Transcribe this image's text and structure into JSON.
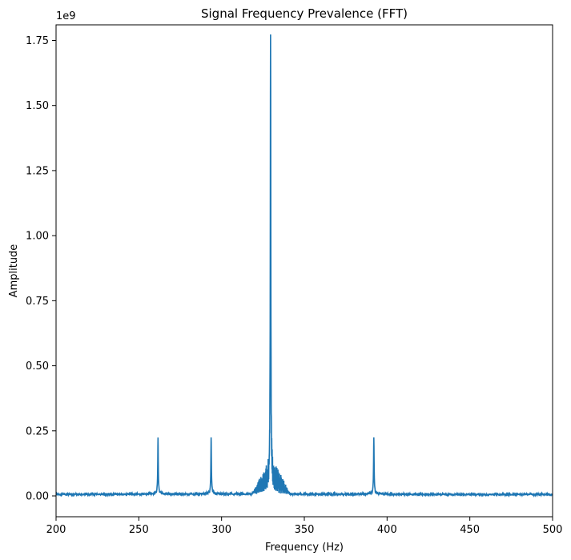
{
  "chart_data": {
    "type": "line",
    "title": "Signal Frequency Prevalence (FFT)",
    "xlabel": "Frequency (Hz)",
    "ylabel": "Amplitude",
    "y_offset_label": "1e9",
    "xlim": [
      200,
      500
    ],
    "ylim": [
      -0.08,
      1.81
    ],
    "y_scale_factor": 1000000000,
    "grid": false,
    "line_color": "#1f77b4",
    "x_ticks": [
      200,
      250,
      300,
      350,
      400,
      450,
      500
    ],
    "x_tick_labels": [
      "200",
      "250",
      "300",
      "350",
      "400",
      "450",
      "500"
    ],
    "y_ticks": [
      0.0,
      0.25,
      0.5,
      0.75,
      1.0,
      1.25,
      1.5,
      1.75
    ],
    "y_tick_labels": [
      "0.00",
      "0.25",
      "0.50",
      "0.75",
      "1.00",
      "1.25",
      "1.50",
      "1.75"
    ],
    "series": [
      {
        "peaks": [
          {
            "x": 261.6,
            "y": 0.22
          },
          {
            "x": 293.7,
            "y": 0.22
          },
          {
            "x": 329.6,
            "y": 1.73
          },
          {
            "x": 392.0,
            "y": 0.22
          }
        ],
        "cluster": {
          "center": 330,
          "half_width": 12,
          "amplitude": 0.115
        },
        "baseline": 0.004
      }
    ]
  }
}
